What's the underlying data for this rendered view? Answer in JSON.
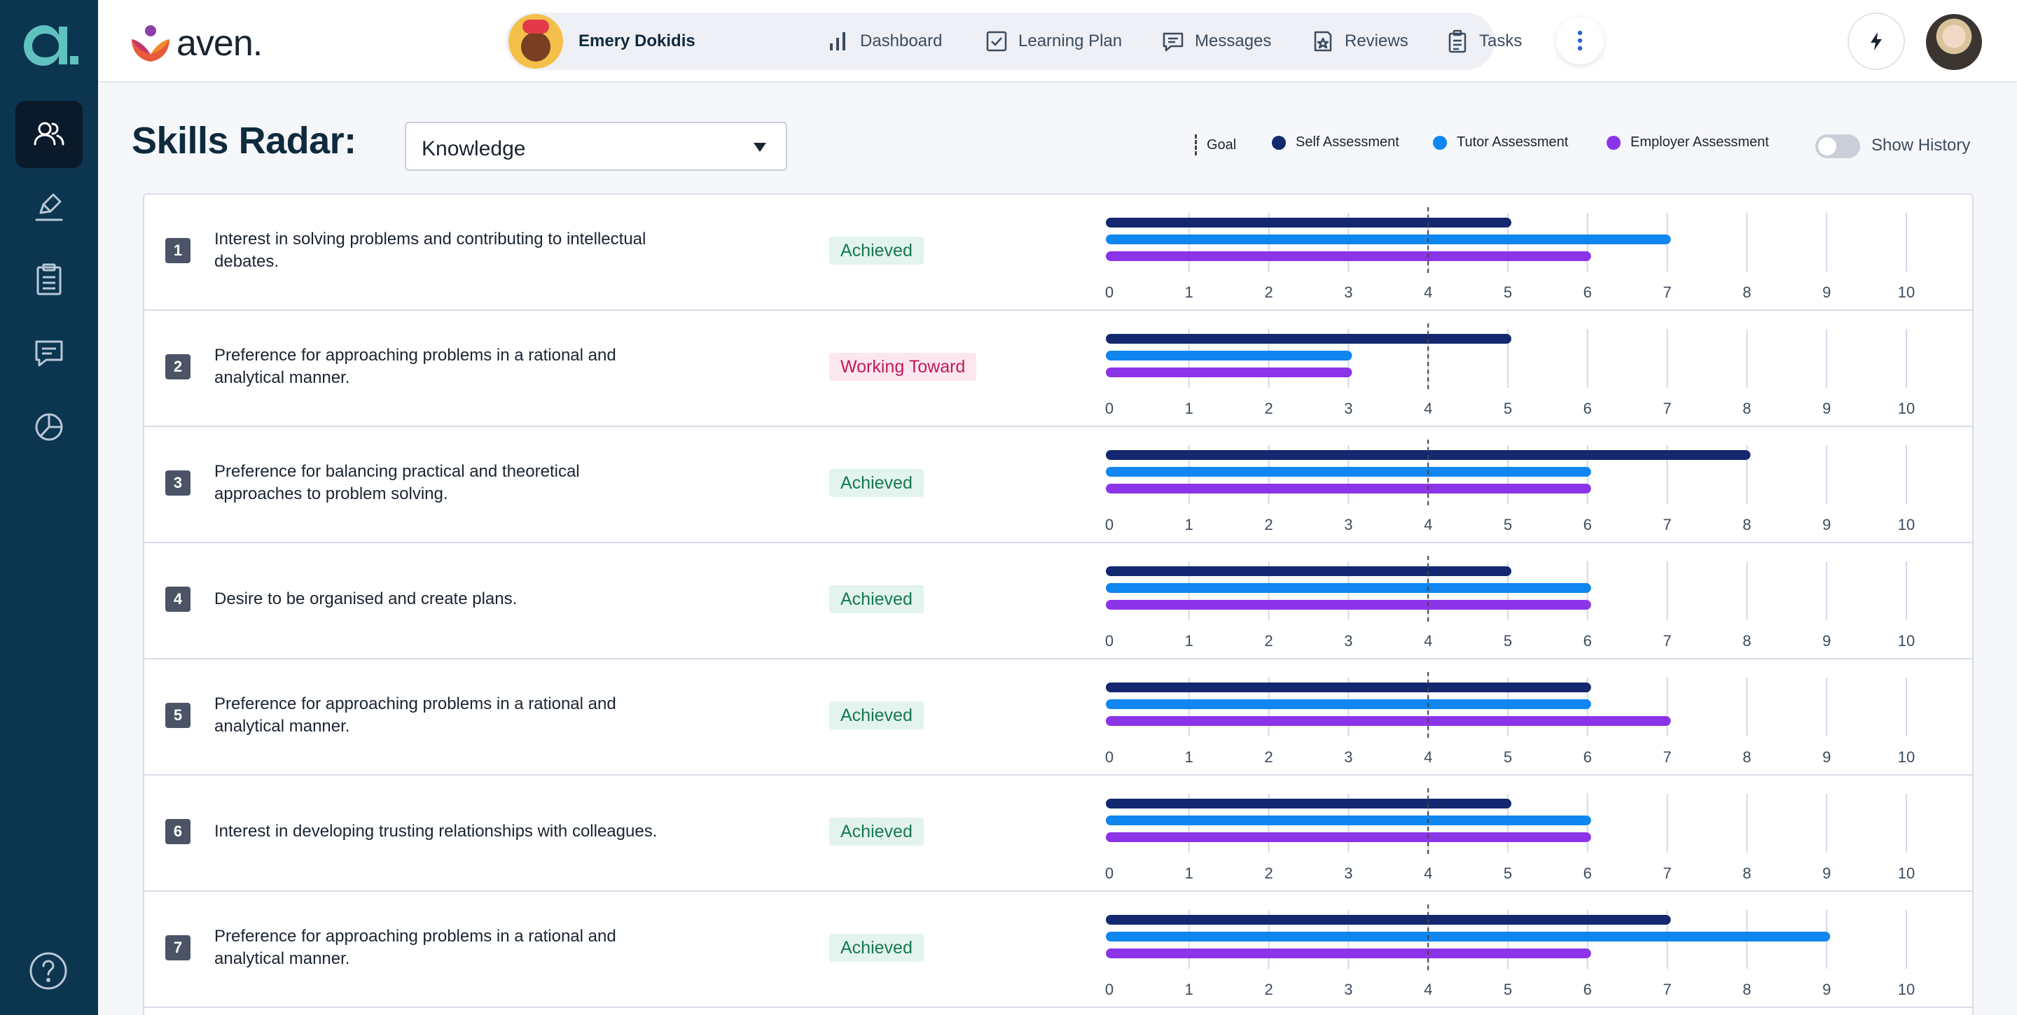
{
  "rail": {
    "items": [
      {
        "name": "users-icon",
        "active": true
      },
      {
        "name": "pen-icon",
        "active": false
      },
      {
        "name": "clipboard-icon",
        "active": false
      },
      {
        "name": "chat-icon",
        "active": false
      },
      {
        "name": "pie-chart-icon",
        "active": false
      }
    ],
    "help_icon": "help-icon"
  },
  "brand": {
    "name": "aven."
  },
  "nav": {
    "user_name": "Emery Dokidis",
    "items": [
      {
        "label": "Dashboard",
        "icon": "bar-chart-icon"
      },
      {
        "label": "Learning Plan",
        "icon": "checkbox-icon"
      },
      {
        "label": "Messages",
        "icon": "message-icon"
      },
      {
        "label": "Reviews",
        "icon": "review-icon"
      },
      {
        "label": "Tasks",
        "icon": "tasks-icon"
      }
    ],
    "more_icon": "more-vertical-icon"
  },
  "page": {
    "title": "Skills Radar:",
    "dropdown_value": "Knowledge"
  },
  "legend": {
    "goal": "Goal",
    "self": "Self Assessment",
    "tutor": "Tutor Assessment",
    "employer": "Employer Assessment"
  },
  "toggle": {
    "label": "Show History",
    "on": false
  },
  "colors": {
    "self": "#13286e",
    "tutor": "#0f86f0",
    "employer": "#8c34e8",
    "goal_line": "#444444"
  },
  "chart_data": {
    "type": "bar",
    "orientation": "horizontal",
    "xlim": [
      0,
      10
    ],
    "ticks": [
      0,
      1,
      2,
      3,
      4,
      5,
      6,
      7,
      8,
      9,
      10
    ],
    "goal": 4,
    "series_names": [
      "Self Assessment",
      "Tutor Assessment",
      "Employer Assessment"
    ],
    "rows": [
      {
        "num": "1",
        "text": "Interest in solving problems and contributing to intellectual debates.",
        "status": "Achieved",
        "self": 5,
        "tutor": 7,
        "employer": 6
      },
      {
        "num": "2",
        "text": "Preference for approaching problems in a rational and analytical manner.",
        "status": "Working Toward",
        "self": 5,
        "tutor": 3,
        "employer": 3
      },
      {
        "num": "3",
        "text": "Preference for balancing practical and theoretical approaches to problem solving.",
        "status": "Achieved",
        "self": 8,
        "tutor": 6,
        "employer": 6
      },
      {
        "num": "4",
        "text": "Desire to be organised and create plans.",
        "status": "Achieved",
        "self": 5,
        "tutor": 6,
        "employer": 6
      },
      {
        "num": "5",
        "text": "Preference for approaching problems in a rational and analytical manner.",
        "status": "Achieved",
        "self": 6,
        "tutor": 6,
        "employer": 7
      },
      {
        "num": "6",
        "text": "Interest in developing trusting relationships with colleagues.",
        "status": "Achieved",
        "self": 5,
        "tutor": 6,
        "employer": 6
      },
      {
        "num": "7",
        "text": "Preference for approaching problems in a rational and analytical manner.",
        "status": "Achieved",
        "self": 7,
        "tutor": 9,
        "employer": 6
      }
    ]
  }
}
